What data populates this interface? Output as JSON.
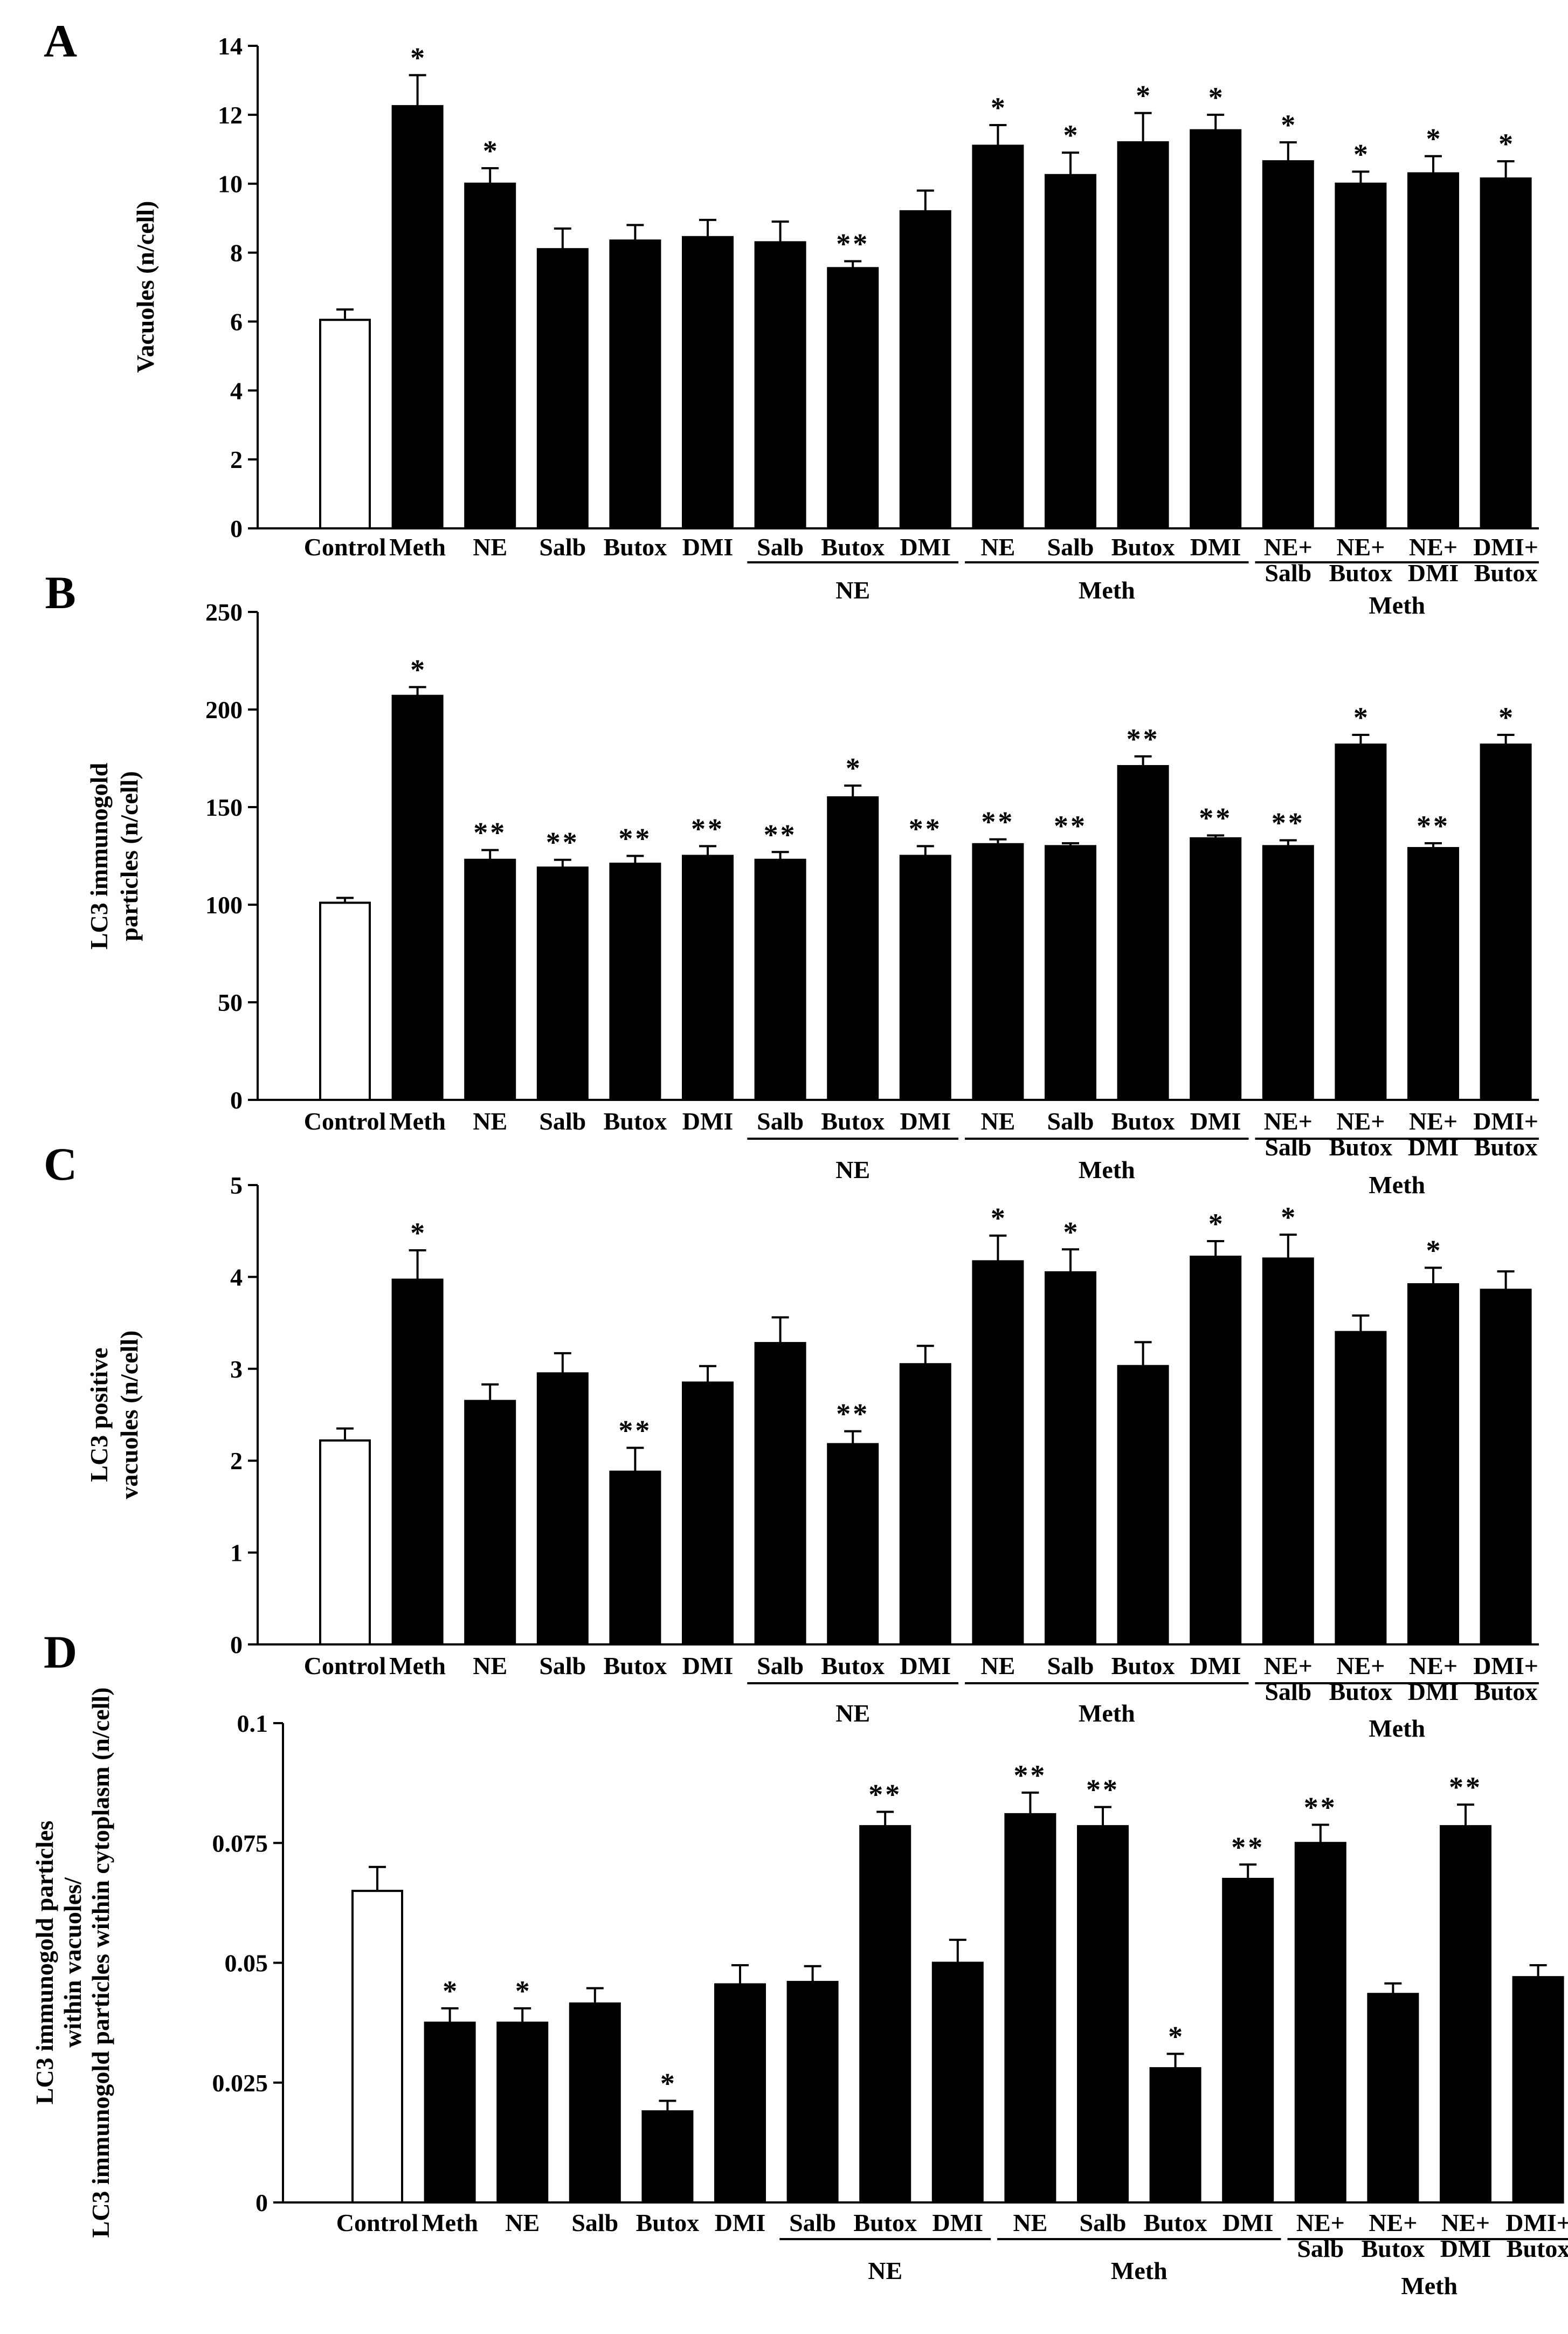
{
  "figure": {
    "letters": [
      "A",
      "B",
      "C",
      "D"
    ]
  },
  "chart_data": [
    {
      "type": "bar",
      "panel": "A",
      "title": "",
      "ylabel": "Vacuoles (n/cell)",
      "ylim": [
        0,
        14
      ],
      "yticks": [
        "0",
        "2",
        "4",
        "6",
        "8",
        "10",
        "12",
        "14"
      ],
      "categories": [
        "Control",
        "Meth",
        "NE",
        "Salb",
        "Butox",
        "DMI",
        "Salb",
        "Butox",
        "DMI",
        "NE",
        "Salb",
        "Butox",
        "DMI",
        "NE+ Salb",
        "NE+ Butox",
        "NE+ DMI",
        "DMI+ Butox"
      ],
      "values": [
        6.05,
        12.25,
        10.0,
        8.1,
        8.35,
        8.45,
        8.3,
        7.55,
        9.2,
        11.1,
        10.25,
        11.2,
        11.55,
        10.65,
        10.0,
        10.3,
        10.15
      ],
      "errors": [
        0.3,
        0.9,
        0.45,
        0.6,
        0.45,
        0.5,
        0.6,
        0.2,
        0.6,
        0.6,
        0.65,
        0.85,
        0.45,
        0.55,
        0.35,
        0.5,
        0.5
      ],
      "significance": [
        "",
        "*",
        "*",
        "",
        "",
        "",
        "",
        "**",
        "",
        "*",
        "*",
        "*",
        "*",
        "*",
        "*",
        "*",
        "*"
      ],
      "group_labels": [
        "NE",
        "Meth",
        "Meth"
      ]
    },
    {
      "type": "bar",
      "panel": "B",
      "title": "",
      "ylabel": "LC3 immunogold particles (n/cell)",
      "ylim": [
        0,
        250
      ],
      "yticks": [
        "0",
        "50",
        "100",
        "150",
        "200",
        "250"
      ],
      "categories": [
        "Control",
        "Meth",
        "NE",
        "Salb",
        "Butox",
        "DMI",
        "Salb",
        "Butox",
        "DMI",
        "NE",
        "Salb",
        "Butox",
        "DMI",
        "NE+ Salb",
        "NE+ Butox",
        "NE+ DMI",
        "DMI+ Butox"
      ],
      "values": [
        101,
        207,
        123,
        119,
        121,
        125,
        123,
        155,
        125,
        131,
        130,
        171,
        134,
        130,
        182,
        129,
        182
      ],
      "errors": [
        2.5,
        4.5,
        5,
        4,
        4,
        5,
        4,
        6,
        5,
        2.5,
        1.5,
        5,
        1.5,
        3,
        5,
        2.5,
        5
      ],
      "significance": [
        "",
        "*",
        "**",
        "**",
        "**",
        "**",
        "**",
        "*",
        "**",
        "**",
        "**",
        "**",
        "**",
        "**",
        "*",
        "**",
        "*"
      ],
      "group_labels": [
        "NE",
        "Meth",
        "Meth"
      ]
    },
    {
      "type": "bar",
      "panel": "C",
      "title": "",
      "ylabel": "LC3 positive vacuoles (n/cell)",
      "ylim": [
        0,
        5
      ],
      "yticks": [
        "0",
        "1",
        "2",
        "3",
        "4",
        "5"
      ],
      "categories": [
        "Control",
        "Meth",
        "NE",
        "Salb",
        "Butox",
        "DMI",
        "Salb",
        "Butox",
        "DMI",
        "NE",
        "Salb",
        "Butox",
        "DMI",
        "NE+ Salb",
        "NE+ Butox",
        "NE+ DMI",
        "DMI+ Butox"
      ],
      "values": [
        2.22,
        3.97,
        2.65,
        2.95,
        1.88,
        2.85,
        3.28,
        2.18,
        3.05,
        4.17,
        4.05,
        3.03,
        4.22,
        4.2,
        3.4,
        3.92,
        3.86
      ],
      "errors": [
        0.13,
        0.32,
        0.18,
        0.22,
        0.26,
        0.18,
        0.28,
        0.14,
        0.2,
        0.28,
        0.25,
        0.26,
        0.17,
        0.26,
        0.18,
        0.18,
        0.2
      ],
      "significance": [
        "",
        "*",
        "",
        "",
        "**",
        "",
        "",
        "**",
        "",
        "*",
        "*",
        "",
        "*",
        "*",
        "",
        "*",
        ""
      ],
      "group_labels": [
        "NE",
        "Meth",
        "Meth"
      ]
    },
    {
      "type": "bar",
      "panel": "D",
      "title": "",
      "ylabel": "LC3 immunogold particles within vacuoles/ LC3 immunogold particles within cytoplasm (n/cell)",
      "ylim": [
        0,
        0.1
      ],
      "yticks": [
        "0",
        "0.025",
        "0.05",
        "0.075",
        "0.1"
      ],
      "categories": [
        "Control",
        "Meth",
        "NE",
        "Salb",
        "Butox",
        "DMI",
        "Salb",
        "Butox",
        "DMI",
        "NE",
        "Salb",
        "Butox",
        "DMI",
        "NE+ Salb",
        "NE+ Butox",
        "NE+ DMI",
        "DMI+ Butox"
      ],
      "values": [
        0.065,
        0.0375,
        0.0375,
        0.0415,
        0.019,
        0.0455,
        0.046,
        0.0785,
        0.05,
        0.081,
        0.0785,
        0.028,
        0.0675,
        0.075,
        0.0435,
        0.0785,
        0.047
      ],
      "errors": [
        0.005,
        0.003,
        0.003,
        0.0032,
        0.0022,
        0.004,
        0.0033,
        0.003,
        0.0048,
        0.0045,
        0.004,
        0.003,
        0.003,
        0.0038,
        0.0022,
        0.0045,
        0.0025
      ],
      "significance": [
        "",
        "*",
        "*",
        "",
        "*",
        "",
        "",
        "**",
        "",
        "**",
        "**",
        "*",
        "**",
        "**",
        "",
        "**",
        ""
      ],
      "group_labels": [
        "NE",
        "Meth",
        "Meth"
      ]
    }
  ]
}
